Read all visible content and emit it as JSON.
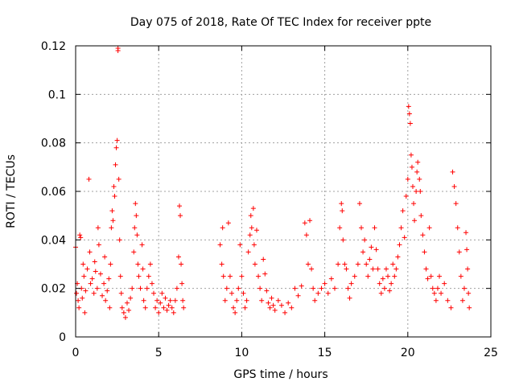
{
  "chart_data": {
    "type": "scatter",
    "title": "Day 075 of 2018, Rate Of TEC Index for receiver ppte",
    "xlabel": "GPS time / hours",
    "ylabel": "ROTI / TECUs",
    "xlim": [
      0,
      25
    ],
    "ylim": [
      0,
      0.12
    ],
    "xticks": [
      0,
      5,
      10,
      15,
      20,
      25
    ],
    "xtick_labels": [
      "0",
      "5",
      "10",
      "15",
      "20",
      "25"
    ],
    "yticks": [
      0,
      0.02,
      0.04,
      0.06,
      0.08,
      0.1,
      0.12
    ],
    "ytick_labels": [
      "0",
      "0.02",
      "0.04",
      "0.06",
      "0.08",
      "0.1",
      "0.12"
    ],
    "grid": true,
    "marker": "+",
    "color": "#ff0000",
    "series": [
      {
        "name": "ROTI",
        "points": [
          [
            0.0,
            0.037
          ],
          [
            0.05,
            0.018
          ],
          [
            0.1,
            0.022
          ],
          [
            0.15,
            0.015
          ],
          [
            0.2,
            0.012
          ],
          [
            0.25,
            0.042
          ],
          [
            0.3,
            0.041
          ],
          [
            0.35,
            0.02
          ],
          [
            0.4,
            0.016
          ],
          [
            0.45,
            0.03
          ],
          [
            0.5,
            0.025
          ],
          [
            0.55,
            0.01
          ],
          [
            0.6,
            0.019
          ],
          [
            0.7,
            0.028
          ],
          [
            0.8,
            0.065
          ],
          [
            0.85,
            0.035
          ],
          [
            0.9,
            0.022
          ],
          [
            1.0,
            0.024
          ],
          [
            1.1,
            0.018
          ],
          [
            1.15,
            0.031
          ],
          [
            1.2,
            0.027
          ],
          [
            1.3,
            0.02
          ],
          [
            1.35,
            0.045
          ],
          [
            1.4,
            0.038
          ],
          [
            1.5,
            0.026
          ],
          [
            1.6,
            0.017
          ],
          [
            1.7,
            0.022
          ],
          [
            1.75,
            0.033
          ],
          [
            1.8,
            0.015
          ],
          [
            1.9,
            0.019
          ],
          [
            2.0,
            0.024
          ],
          [
            2.05,
            0.012
          ],
          [
            2.1,
            0.03
          ],
          [
            2.15,
            0.045
          ],
          [
            2.2,
            0.052
          ],
          [
            2.25,
            0.048
          ],
          [
            2.3,
            0.062
          ],
          [
            2.35,
            0.058
          ],
          [
            2.4,
            0.071
          ],
          [
            2.45,
            0.078
          ],
          [
            2.5,
            0.081
          ],
          [
            2.55,
            0.119
          ],
          [
            2.55,
            0.118
          ],
          [
            2.6,
            0.065
          ],
          [
            2.65,
            0.04
          ],
          [
            2.7,
            0.025
          ],
          [
            2.75,
            0.018
          ],
          [
            2.8,
            0.012
          ],
          [
            2.9,
            0.01
          ],
          [
            3.0,
            0.008
          ],
          [
            3.1,
            0.014
          ],
          [
            3.2,
            0.011
          ],
          [
            3.3,
            0.016
          ],
          [
            3.4,
            0.02
          ],
          [
            3.5,
            0.035
          ],
          [
            3.55,
            0.045
          ],
          [
            3.6,
            0.055
          ],
          [
            3.65,
            0.05
          ],
          [
            3.7,
            0.042
          ],
          [
            3.75,
            0.03
          ],
          [
            3.8,
            0.025
          ],
          [
            3.9,
            0.02
          ],
          [
            4.0,
            0.038
          ],
          [
            4.05,
            0.028
          ],
          [
            4.1,
            0.015
          ],
          [
            4.2,
            0.012
          ],
          [
            4.3,
            0.02
          ],
          [
            4.4,
            0.025
          ],
          [
            4.5,
            0.03
          ],
          [
            4.6,
            0.022
          ],
          [
            4.7,
            0.018
          ],
          [
            4.8,
            0.012
          ],
          [
            4.9,
            0.015
          ],
          [
            5.0,
            0.01
          ],
          [
            5.1,
            0.014
          ],
          [
            5.2,
            0.018
          ],
          [
            5.3,
            0.012
          ],
          [
            5.4,
            0.016
          ],
          [
            5.5,
            0.011
          ],
          [
            5.6,
            0.013
          ],
          [
            5.7,
            0.015
          ],
          [
            5.8,
            0.012
          ],
          [
            5.9,
            0.01
          ],
          [
            6.0,
            0.015
          ],
          [
            6.1,
            0.02
          ],
          [
            6.2,
            0.033
          ],
          [
            6.25,
            0.054
          ],
          [
            6.3,
            0.05
          ],
          [
            6.35,
            0.03
          ],
          [
            6.4,
            0.022
          ],
          [
            6.45,
            0.015
          ],
          [
            6.5,
            0.012
          ],
          [
            8.7,
            0.038
          ],
          [
            8.8,
            0.03
          ],
          [
            8.85,
            0.045
          ],
          [
            8.9,
            0.025
          ],
          [
            9.0,
            0.015
          ],
          [
            9.1,
            0.02
          ],
          [
            9.2,
            0.047
          ],
          [
            9.3,
            0.025
          ],
          [
            9.4,
            0.018
          ],
          [
            9.5,
            0.012
          ],
          [
            9.6,
            0.01
          ],
          [
            9.7,
            0.015
          ],
          [
            9.8,
            0.02
          ],
          [
            9.9,
            0.038
          ],
          [
            10.0,
            0.025
          ],
          [
            10.1,
            0.018
          ],
          [
            10.2,
            0.012
          ],
          [
            10.3,
            0.015
          ],
          [
            10.4,
            0.035
          ],
          [
            10.5,
            0.042
          ],
          [
            10.55,
            0.05
          ],
          [
            10.6,
            0.045
          ],
          [
            10.7,
            0.053
          ],
          [
            10.75,
            0.038
          ],
          [
            10.8,
            0.03
          ],
          [
            10.9,
            0.044
          ],
          [
            11.0,
            0.025
          ],
          [
            11.1,
            0.02
          ],
          [
            11.2,
            0.015
          ],
          [
            11.3,
            0.032
          ],
          [
            11.4,
            0.026
          ],
          [
            11.5,
            0.019
          ],
          [
            11.6,
            0.014
          ],
          [
            11.7,
            0.012
          ],
          [
            11.8,
            0.016
          ],
          [
            11.9,
            0.013
          ],
          [
            12.0,
            0.011
          ],
          [
            12.2,
            0.015
          ],
          [
            12.4,
            0.013
          ],
          [
            12.6,
            0.01
          ],
          [
            12.8,
            0.014
          ],
          [
            13.0,
            0.012
          ],
          [
            13.2,
            0.02
          ],
          [
            13.4,
            0.017
          ],
          [
            13.6,
            0.021
          ],
          [
            13.8,
            0.047
          ],
          [
            13.9,
            0.042
          ],
          [
            14.0,
            0.03
          ],
          [
            14.1,
            0.048
          ],
          [
            14.2,
            0.028
          ],
          [
            14.3,
            0.02
          ],
          [
            14.4,
            0.015
          ],
          [
            14.6,
            0.018
          ],
          [
            14.8,
            0.02
          ],
          [
            15.0,
            0.022
          ],
          [
            15.2,
            0.018
          ],
          [
            15.4,
            0.024
          ],
          [
            15.6,
            0.02
          ],
          [
            15.8,
            0.03
          ],
          [
            15.9,
            0.045
          ],
          [
            16.0,
            0.055
          ],
          [
            16.05,
            0.052
          ],
          [
            16.1,
            0.04
          ],
          [
            16.2,
            0.03
          ],
          [
            16.3,
            0.028
          ],
          [
            16.4,
            0.02
          ],
          [
            16.5,
            0.016
          ],
          [
            16.6,
            0.022
          ],
          [
            16.8,
            0.025
          ],
          [
            17.0,
            0.03
          ],
          [
            17.1,
            0.055
          ],
          [
            17.2,
            0.045
          ],
          [
            17.3,
            0.035
          ],
          [
            17.4,
            0.04
          ],
          [
            17.5,
            0.03
          ],
          [
            17.6,
            0.025
          ],
          [
            17.7,
            0.032
          ],
          [
            17.8,
            0.037
          ],
          [
            17.9,
            0.028
          ],
          [
            18.0,
            0.045
          ],
          [
            18.1,
            0.036
          ],
          [
            18.2,
            0.028
          ],
          [
            18.3,
            0.022
          ],
          [
            18.4,
            0.018
          ],
          [
            18.5,
            0.024
          ],
          [
            18.6,
            0.02
          ],
          [
            18.7,
            0.028
          ],
          [
            18.8,
            0.025
          ],
          [
            18.9,
            0.019
          ],
          [
            19.0,
            0.022
          ],
          [
            19.1,
            0.03
          ],
          [
            19.2,
            0.025
          ],
          [
            19.3,
            0.028
          ],
          [
            19.4,
            0.033
          ],
          [
            19.5,
            0.038
          ],
          [
            19.6,
            0.045
          ],
          [
            19.7,
            0.052
          ],
          [
            19.8,
            0.041
          ],
          [
            19.9,
            0.058
          ],
          [
            20.0,
            0.065
          ],
          [
            20.05,
            0.095
          ],
          [
            20.1,
            0.092
          ],
          [
            20.15,
            0.088
          ],
          [
            20.2,
            0.075
          ],
          [
            20.25,
            0.07
          ],
          [
            20.3,
            0.062
          ],
          [
            20.35,
            0.055
          ],
          [
            20.4,
            0.048
          ],
          [
            20.5,
            0.06
          ],
          [
            20.55,
            0.068
          ],
          [
            20.6,
            0.072
          ],
          [
            20.7,
            0.065
          ],
          [
            20.75,
            0.06
          ],
          [
            20.8,
            0.05
          ],
          [
            20.9,
            0.042
          ],
          [
            21.0,
            0.035
          ],
          [
            21.1,
            0.028
          ],
          [
            21.2,
            0.024
          ],
          [
            21.3,
            0.045
          ],
          [
            21.4,
            0.025
          ],
          [
            21.5,
            0.02
          ],
          [
            21.6,
            0.018
          ],
          [
            21.7,
            0.015
          ],
          [
            21.8,
            0.02
          ],
          [
            21.9,
            0.025
          ],
          [
            22.0,
            0.018
          ],
          [
            22.2,
            0.022
          ],
          [
            22.4,
            0.015
          ],
          [
            22.6,
            0.012
          ],
          [
            22.7,
            0.068
          ],
          [
            22.8,
            0.062
          ],
          [
            22.9,
            0.055
          ],
          [
            23.0,
            0.045
          ],
          [
            23.1,
            0.035
          ],
          [
            23.2,
            0.025
          ],
          [
            23.3,
            0.015
          ],
          [
            23.4,
            0.02
          ],
          [
            23.5,
            0.043
          ],
          [
            23.55,
            0.036
          ],
          [
            23.6,
            0.028
          ],
          [
            23.65,
            0.018
          ],
          [
            23.7,
            0.012
          ]
        ]
      }
    ]
  }
}
